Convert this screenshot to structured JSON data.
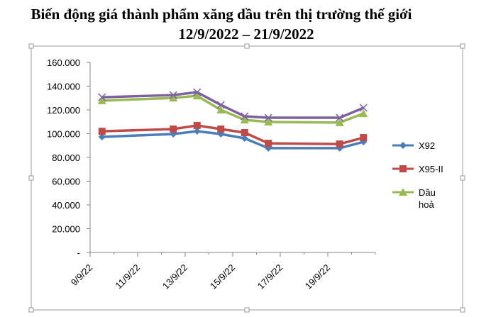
{
  "chart_data": {
    "type": "line",
    "title": "Biến động giá thành phẩm xăng dầu trên thị trường thế giới",
    "subtitle": "12/9/2022 – 21/9/2022",
    "x": [
      "9/9/22",
      "12/9/22",
      "13/9/22",
      "14/9/22",
      "15/9/22",
      "16/9/22",
      "19/9/22",
      "20/9/22"
    ],
    "xlim": [
      "9/9/22",
      "21/9/22"
    ],
    "xticks": [
      "9/9/22",
      "11/9/22",
      "13/9/22",
      "15/9/22",
      "17/9/22",
      "19/9/22"
    ],
    "ylim": [
      0,
      160000
    ],
    "yticks": [
      {
        "value": 0,
        "label": "-"
      },
      {
        "value": 20000,
        "label": "20.000"
      },
      {
        "value": 40000,
        "label": "40.000"
      },
      {
        "value": 60000,
        "label": "60.000"
      },
      {
        "value": 80000,
        "label": "80.000"
      },
      {
        "value": 100000,
        "label": "100.000"
      },
      {
        "value": 120000,
        "label": "120.000"
      },
      {
        "value": 140000,
        "label": "140.000"
      },
      {
        "value": 160000,
        "label": "160.000"
      }
    ],
    "series": [
      {
        "name": "X92",
        "color": "#4a7ebb",
        "marker": "diamond",
        "values": [
          97300,
          99700,
          102100,
          99700,
          96100,
          87800,
          87800,
          93100
        ]
      },
      {
        "name": "X95-II",
        "color": "#be4b48",
        "marker": "square",
        "values": [
          102000,
          103900,
          106900,
          103900,
          100900,
          91900,
          91300,
          96700
        ]
      },
      {
        "name": "Dầu hoả",
        "color": "#98b954",
        "marker": "triangle",
        "values": [
          127800,
          130100,
          131900,
          120000,
          111600,
          109900,
          109300,
          117000
        ]
      },
      {
        "color": "#7d60a0",
        "marker": "x",
        "values": [
          130700,
          132500,
          134900,
          124200,
          114600,
          113400,
          113400,
          121800
        ]
      }
    ]
  }
}
